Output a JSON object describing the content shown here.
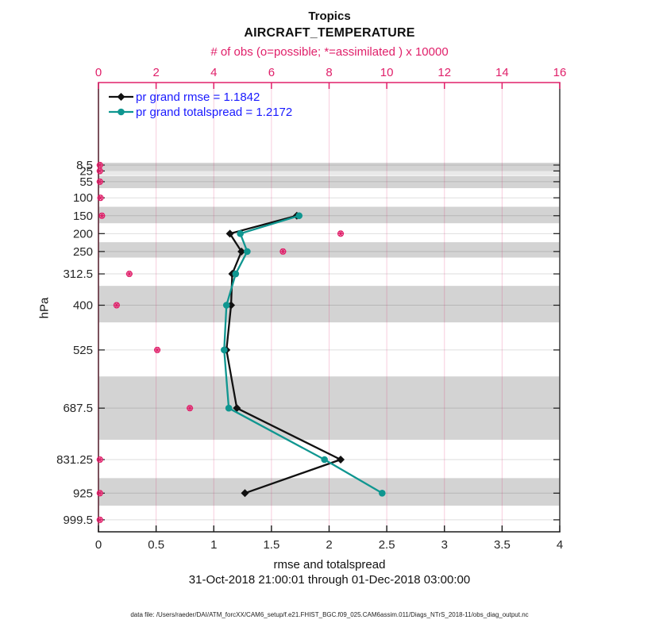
{
  "title": {
    "line1": "Tropics",
    "line2": "AIRCRAFT_TEMPERATURE"
  },
  "obs_axis_label": "# of obs (o=possible; *=assimilated ) x 10000",
  "xlabel": "rmse and totalspread",
  "ylabel": "hPa",
  "timespan": "31-Oct-2018 21:00:01 through 01-Dec-2018 03:00:00",
  "footer": "data file: /Users/raeder/DAI/ATM_forcXX/CAM6_setup/f.e21.FHIST_BGC.f09_025.CAM6assim.011/Diags_NTrS_2018-11/obs_diag_output.nc",
  "legend": {
    "items": [
      {
        "label": "pr grand rmse = 1.1842",
        "marker": "diamond",
        "color": "#111111"
      },
      {
        "label": "pr grand totalspread = 1.2172",
        "marker": "circle",
        "color": "#0f9690"
      }
    ],
    "text_color": "#1a1aff"
  },
  "colors": {
    "magenta": "#e0206a",
    "teal": "#0f9690",
    "black_series": "#111111",
    "legend_blue": "#1a1aff",
    "band": "#d3d3d3",
    "band_light": "#e9e9e9",
    "grid_h": "rgba(0,0,0,0.13)",
    "grid_v": "rgba(224,32,106,0.22)",
    "spine_left": "#5a2633",
    "spine_dark": "#1a1a1a"
  },
  "chart_data": {
    "type": "line",
    "orientation": "vertical-profile",
    "title": "Tropics AIRCRAFT_TEMPERATURE",
    "x_bottom": {
      "label": "rmse and totalspread",
      "min": 0,
      "max": 4,
      "ticks": [
        0,
        0.5,
        1,
        1.5,
        2,
        2.5,
        3,
        3.5,
        4
      ]
    },
    "x_top": {
      "label": "# of obs (o=possible; *=assimilated ) x 10000",
      "min": 0,
      "max": 16,
      "ticks": [
        0,
        2,
        4,
        6,
        8,
        10,
        12,
        14,
        16
      ]
    },
    "y": {
      "label": "hPa",
      "lim": [
        -222,
        1033
      ],
      "inverted_pressure_axis": true,
      "levels": [
        8.5,
        25,
        55,
        100,
        150,
        200,
        250,
        312.5,
        400,
        525,
        687.5,
        831.25,
        925,
        999.5
      ]
    },
    "gray_bands": [
      {
        "from": 2,
        "to": 24,
        "shade": "normal"
      },
      {
        "from": 26,
        "to": 37,
        "shade": "light"
      },
      {
        "from": 39,
        "to": 73,
        "shade": "normal"
      },
      {
        "from": 125,
        "to": 171,
        "shade": "normal"
      },
      {
        "from": 224,
        "to": 267,
        "shade": "normal"
      },
      {
        "from": 346,
        "to": 448,
        "shade": "normal"
      },
      {
        "from": 599,
        "to": 776,
        "shade": "normal"
      },
      {
        "from": 883,
        "to": 960,
        "shade": "normal"
      }
    ],
    "series": [
      {
        "name": "pr grand rmse",
        "stat": 1.1842,
        "color": "#111111",
        "marker": "diamond",
        "levels": [
          150,
          200,
          250,
          312.5,
          400,
          525,
          687.5,
          831.25,
          925
        ],
        "values": [
          1.72,
          1.14,
          1.24,
          1.16,
          1.15,
          1.11,
          1.2,
          2.1,
          1.27
        ]
      },
      {
        "name": "pr grand totalspread",
        "stat": 1.2172,
        "color": "#0f9690",
        "marker": "circle",
        "levels": [
          150,
          200,
          250,
          312.5,
          400,
          525,
          687.5,
          831.25,
          925
        ],
        "values": [
          1.74,
          1.23,
          1.29,
          1.19,
          1.11,
          1.09,
          1.13,
          1.96,
          2.46
        ]
      }
    ],
    "obs_counts": {
      "units": "x 10000",
      "axis": "top",
      "marker": "o-and-asterisk",
      "color": "#e0206a",
      "levels": [
        8.5,
        25,
        55,
        100,
        150,
        200,
        250,
        312.5,
        400,
        525,
        687.5,
        831.25,
        925,
        999.5
      ],
      "values": [
        0.05,
        0.05,
        0.05,
        0.07,
        0.12,
        8.4,
        6.4,
        1.07,
        0.63,
        2.04,
        3.17,
        0.05,
        0.05,
        0.05
      ]
    }
  }
}
